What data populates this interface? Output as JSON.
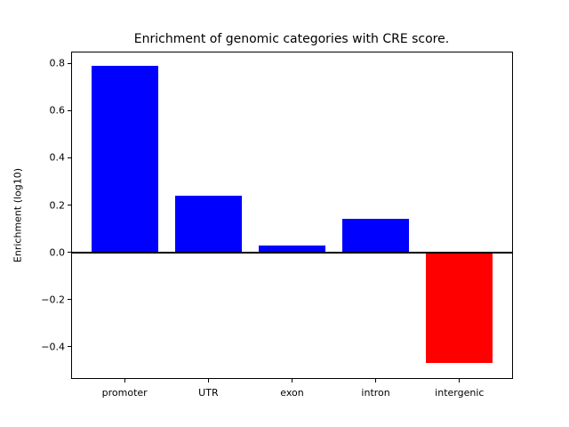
{
  "chart_data": {
    "type": "bar",
    "title": "Enrichment of genomic categories with CRE score.",
    "xlabel": "",
    "ylabel": "Enrichment (log10)",
    "categories": [
      "promoter",
      "UTR",
      "exon",
      "intron",
      "intergenic"
    ],
    "values": [
      0.79,
      0.24,
      0.03,
      0.14,
      -0.47
    ],
    "bar_colors": [
      "#0000ff",
      "#0000ff",
      "#0000ff",
      "#0000ff",
      "#ff0000"
    ],
    "colors": {
      "positive_bar": "#0000ff",
      "negative_bar": "#ff0000",
      "axis": "#000000",
      "background": "#ffffff"
    },
    "yticks": [
      0.8,
      0.6,
      0.4,
      0.2,
      0.0,
      -0.2,
      -0.4
    ],
    "ylim": [
      -0.537,
      0.85
    ],
    "xlim": [
      -0.64,
      4.64
    ],
    "bar_width": 0.8,
    "baseline": 0,
    "zero_line": true,
    "grid": false,
    "legend": false
  }
}
